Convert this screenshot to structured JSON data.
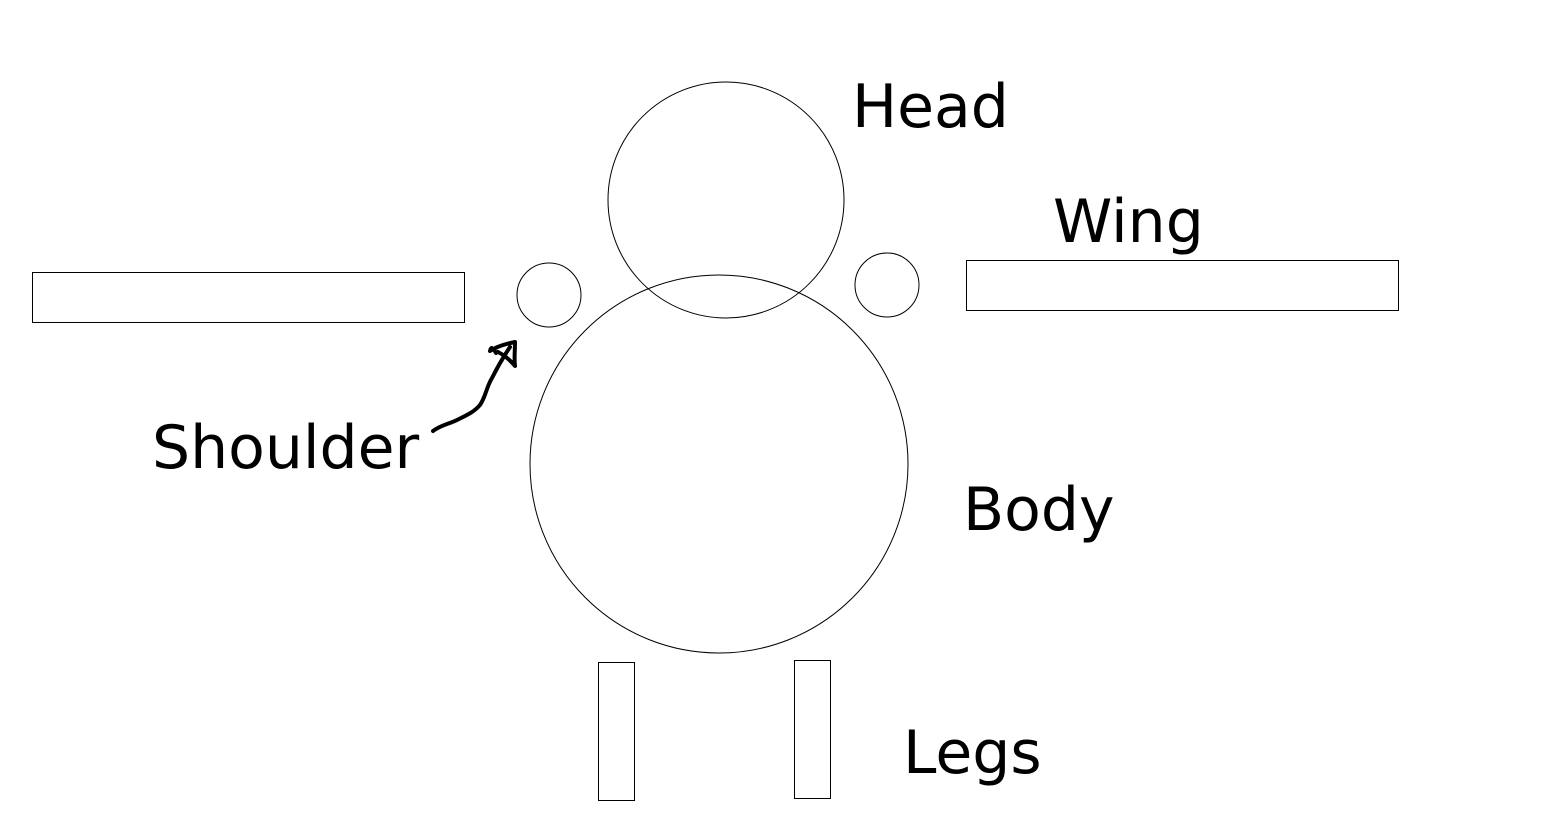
{
  "labels": {
    "head": "Head",
    "wing": "Wing",
    "shoulder": "Shoulder",
    "body": "Body",
    "legs": "Legs"
  },
  "colors": {
    "stroke": "#000000",
    "background": "#ffffff"
  }
}
